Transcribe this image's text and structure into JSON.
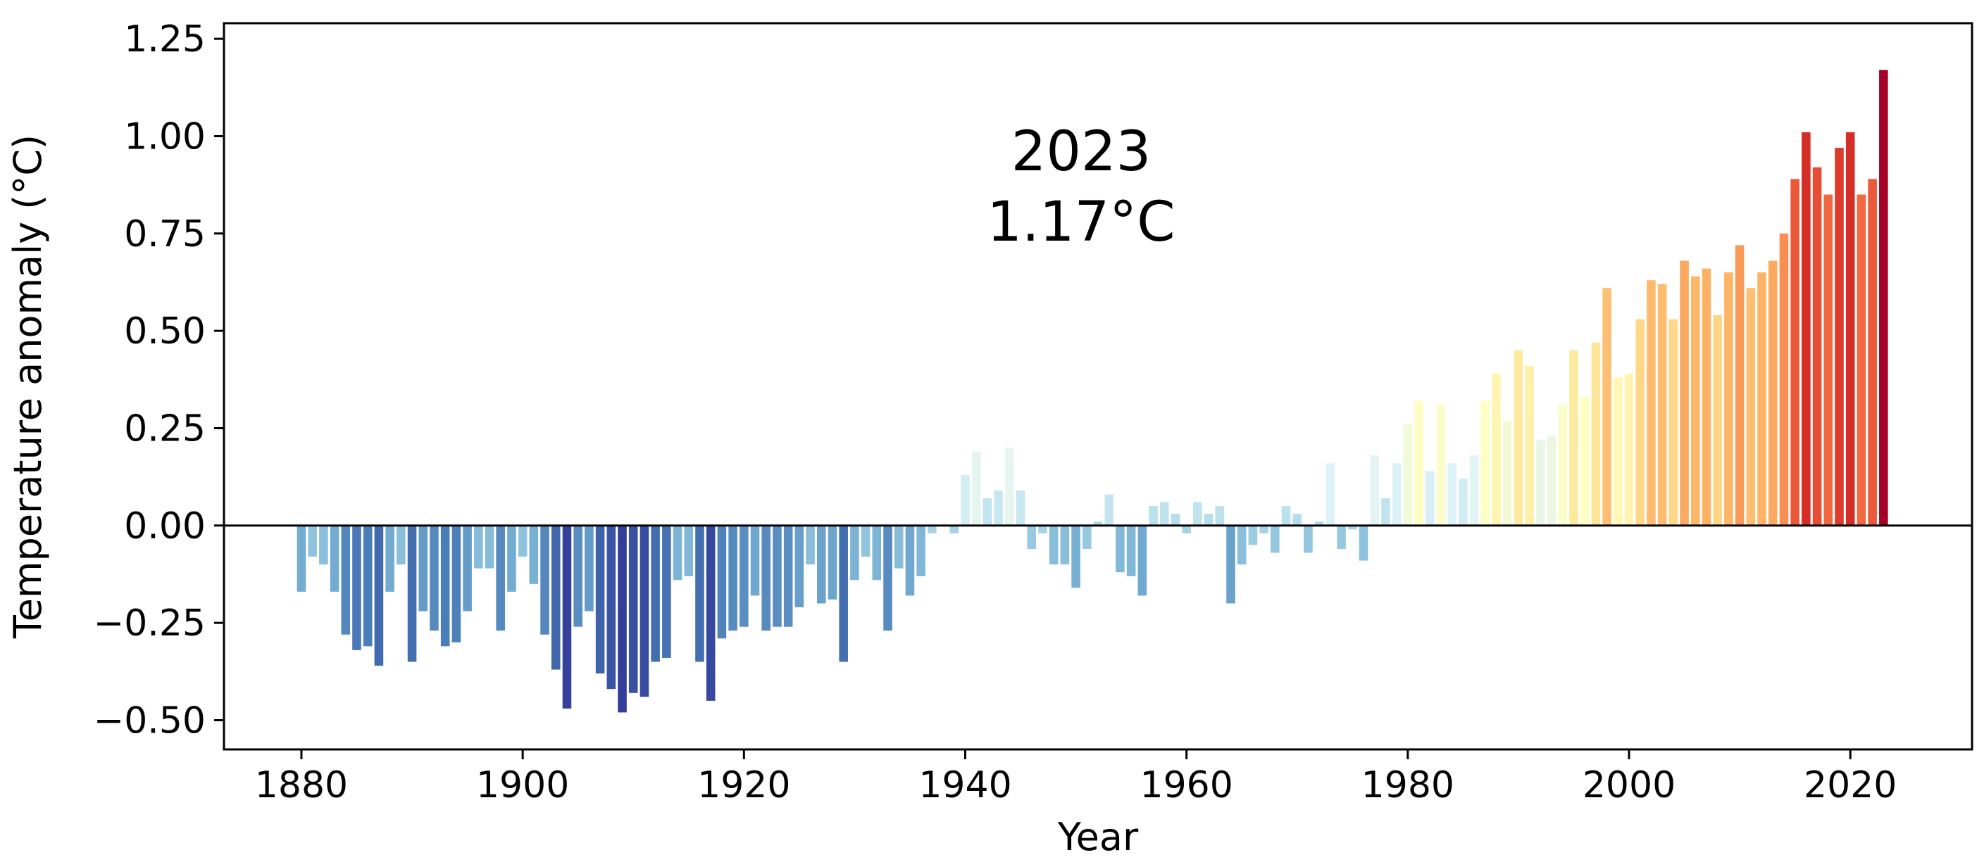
{
  "chart_data": {
    "type": "bar",
    "title": "",
    "xlabel": "Year",
    "ylabel": "Temperature anomaly (°C)",
    "xlim": [
      1873,
      2031
    ],
    "ylim": [
      -0.575,
      1.29
    ],
    "grid": false,
    "legend": "none",
    "xticks": [
      1880,
      1900,
      1920,
      1940,
      1960,
      1980,
      2000,
      2020
    ],
    "xtick_labels": [
      "1880",
      "1900",
      "1920",
      "1940",
      "1960",
      "1980",
      "2000",
      "2020"
    ],
    "yticks": [
      -0.5,
      -0.25,
      0.0,
      0.25,
      0.5,
      0.75,
      1.0,
      1.25
    ],
    "ytick_labels": [
      "−0.50",
      "−0.25",
      "0.00",
      "0.25",
      "0.50",
      "0.75",
      "1.00",
      "1.25"
    ],
    "annotation": {
      "year_text": "2023",
      "value_text": "1.17°C"
    },
    "color_scale": {
      "min": -0.5,
      "max": 1.17,
      "stops": [
        "#313695",
        "#4575b4",
        "#74add1",
        "#abd9e9",
        "#e0f3f8",
        "#ffffbf",
        "#fee090",
        "#fdae61",
        "#f46d43",
        "#d73027",
        "#a50026"
      ]
    },
    "years": [
      1880,
      1881,
      1882,
      1883,
      1884,
      1885,
      1886,
      1887,
      1888,
      1889,
      1890,
      1891,
      1892,
      1893,
      1894,
      1895,
      1896,
      1897,
      1898,
      1899,
      1900,
      1901,
      1902,
      1903,
      1904,
      1905,
      1906,
      1907,
      1908,
      1909,
      1910,
      1911,
      1912,
      1913,
      1914,
      1915,
      1916,
      1917,
      1918,
      1919,
      1920,
      1921,
      1922,
      1923,
      1924,
      1925,
      1926,
      1927,
      1928,
      1929,
      1930,
      1931,
      1932,
      1933,
      1934,
      1935,
      1936,
      1937,
      1938,
      1939,
      1940,
      1941,
      1942,
      1943,
      1944,
      1945,
      1946,
      1947,
      1948,
      1949,
      1950,
      1951,
      1952,
      1953,
      1954,
      1955,
      1956,
      1957,
      1958,
      1959,
      1960,
      1961,
      1962,
      1963,
      1964,
      1965,
      1966,
      1967,
      1968,
      1969,
      1970,
      1971,
      1972,
      1973,
      1974,
      1975,
      1976,
      1977,
      1978,
      1979,
      1980,
      1981,
      1982,
      1983,
      1984,
      1985,
      1986,
      1987,
      1988,
      1989,
      1990,
      1991,
      1992,
      1993,
      1994,
      1995,
      1996,
      1997,
      1998,
      1999,
      2000,
      2001,
      2002,
      2003,
      2004,
      2005,
      2006,
      2007,
      2008,
      2009,
      2010,
      2011,
      2012,
      2013,
      2014,
      2015,
      2016,
      2017,
      2018,
      2019,
      2020,
      2021,
      2022,
      2023
    ],
    "values": [
      -0.17,
      -0.08,
      -0.1,
      -0.17,
      -0.28,
      -0.32,
      -0.31,
      -0.36,
      -0.17,
      -0.1,
      -0.35,
      -0.22,
      -0.27,
      -0.31,
      -0.3,
      -0.22,
      -0.11,
      -0.11,
      -0.27,
      -0.17,
      -0.08,
      -0.15,
      -0.28,
      -0.37,
      -0.47,
      -0.26,
      -0.22,
      -0.38,
      -0.42,
      -0.48,
      -0.43,
      -0.44,
      -0.35,
      -0.34,
      -0.14,
      -0.13,
      -0.35,
      -0.45,
      -0.29,
      -0.27,
      -0.26,
      -0.18,
      -0.27,
      -0.26,
      -0.26,
      -0.21,
      -0.1,
      -0.2,
      -0.19,
      -0.35,
      -0.14,
      -0.08,
      -0.14,
      -0.27,
      -0.11,
      -0.18,
      -0.13,
      -0.02,
      0.0,
      -0.02,
      0.13,
      0.19,
      0.07,
      0.09,
      0.2,
      0.09,
      -0.06,
      -0.02,
      -0.1,
      -0.1,
      -0.16,
      -0.06,
      0.01,
      0.08,
      -0.12,
      -0.13,
      -0.18,
      0.05,
      0.06,
      0.03,
      -0.02,
      0.06,
      0.03,
      0.05,
      -0.2,
      -0.1,
      -0.05,
      -0.02,
      -0.07,
      0.05,
      0.03,
      -0.07,
      0.01,
      0.16,
      -0.06,
      -0.01,
      -0.09,
      0.18,
      0.07,
      0.16,
      0.26,
      0.32,
      0.14,
      0.31,
      0.16,
      0.12,
      0.18,
      0.32,
      0.39,
      0.27,
      0.45,
      0.41,
      0.22,
      0.23,
      0.31,
      0.45,
      0.33,
      0.47,
      0.61,
      0.38,
      0.39,
      0.53,
      0.63,
      0.62,
      0.53,
      0.68,
      0.64,
      0.66,
      0.54,
      0.65,
      0.72,
      0.61,
      0.65,
      0.68,
      0.75,
      0.89,
      1.01,
      0.92,
      0.85,
      0.97,
      1.01,
      0.85,
      0.89,
      1.17
    ]
  }
}
